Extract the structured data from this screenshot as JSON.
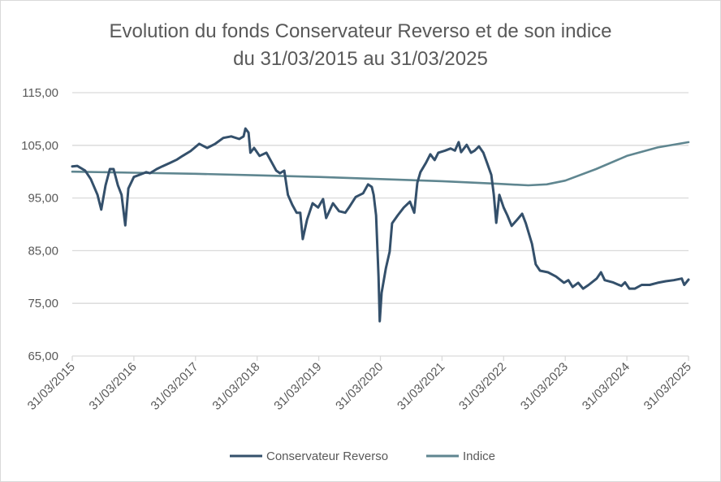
{
  "chart_data": {
    "type": "line",
    "title": [
      "Evolution du fonds Conservateur Reverso et de son indice",
      "du 31/03/2015 au 31/03/2025"
    ],
    "xlabel": "",
    "ylabel": "",
    "x_unit": "years since 31/03/2015",
    "xlim": [
      0,
      10
    ],
    "ylim": [
      65,
      115
    ],
    "y_ticks": [
      "65,00",
      "75,00",
      "85,00",
      "95,00",
      "105,00",
      "115,00"
    ],
    "y_tick_values": [
      65,
      75,
      85,
      95,
      105,
      115
    ],
    "x_ticks": [
      "31/03/2015",
      "31/03/2016",
      "31/03/2017",
      "31/03/2018",
      "31/03/2019",
      "31/03/2020",
      "31/03/2021",
      "31/03/2022",
      "31/03/2023",
      "31/03/2024",
      "31/03/2025"
    ],
    "grid": "horizontal",
    "legend_position": "bottom",
    "series": [
      {
        "name": "Conservateur Reverso",
        "color": "#34506b",
        "x": [
          0,
          0.08,
          0.21,
          0.3,
          0.41,
          0.47,
          0.54,
          0.61,
          0.67,
          0.74,
          0.8,
          0.86,
          0.91,
          1.0,
          1.09,
          1.2,
          1.26,
          1.37,
          1.46,
          1.59,
          1.7,
          1.79,
          1.92,
          2.06,
          2.19,
          2.32,
          2.45,
          2.58,
          2.71,
          2.78,
          2.81,
          2.86,
          2.89,
          2.95,
          3.04,
          3.15,
          3.24,
          3.31,
          3.37,
          3.44,
          3.5,
          3.57,
          3.64,
          3.7,
          3.74,
          3.81,
          3.9,
          3.99,
          4.07,
          4.12,
          4.23,
          4.33,
          4.43,
          4.49,
          4.6,
          4.72,
          4.8,
          4.86,
          4.89,
          4.93,
          4.97,
          4.99,
          5.02,
          5.09,
          5.15,
          5.19,
          5.28,
          5.38,
          5.48,
          5.55,
          5.6,
          5.65,
          5.74,
          5.81,
          5.88,
          5.94,
          6.05,
          6.14,
          6.21,
          6.27,
          6.31,
          6.4,
          6.47,
          6.53,
          6.6,
          6.67,
          6.73,
          6.8,
          6.84,
          6.88,
          6.93,
          7.0,
          7.06,
          7.13,
          7.22,
          7.3,
          7.36,
          7.46,
          7.52,
          7.59,
          7.72,
          7.85,
          7.98,
          8.05,
          8.12,
          8.21,
          8.29,
          8.38,
          8.51,
          8.58,
          8.64,
          8.77,
          8.91,
          8.97,
          9.04,
          9.13,
          9.24,
          9.37,
          9.5,
          9.63,
          9.76,
          9.89,
          9.93,
          10.0
        ],
        "values": [
          101.0,
          101.1,
          100.2,
          98.6,
          95.6,
          92.8,
          97.4,
          100.5,
          100.5,
          97.4,
          95.6,
          89.8,
          96.8,
          99.0,
          99.4,
          99.9,
          99.7,
          100.5,
          101.0,
          101.7,
          102.3,
          103.0,
          103.9,
          105.3,
          104.5,
          105.3,
          106.4,
          106.7,
          106.2,
          106.7,
          108.2,
          107.4,
          103.6,
          104.5,
          103.0,
          103.6,
          101.7,
          100.2,
          99.7,
          100.2,
          95.6,
          93.7,
          92.2,
          92.2,
          87.2,
          90.9,
          94.0,
          93.2,
          94.8,
          91.2,
          94.0,
          92.5,
          92.2,
          93.2,
          95.2,
          95.9,
          97.6,
          97.1,
          95.6,
          91.7,
          80.1,
          71.6,
          77.0,
          81.7,
          84.8,
          90.2,
          91.7,
          93.2,
          94.3,
          92.2,
          97.9,
          99.9,
          101.7,
          103.3,
          102.2,
          103.6,
          104.0,
          104.4,
          104.0,
          105.6,
          103.7,
          105.1,
          103.6,
          104.0,
          104.8,
          103.6,
          101.7,
          99.4,
          95.6,
          90.3,
          95.6,
          93.2,
          91.7,
          89.7,
          90.9,
          92.0,
          90.2,
          86.3,
          82.4,
          81.2,
          80.9,
          80.1,
          78.9,
          79.4,
          78.1,
          78.9,
          77.8,
          78.5,
          79.7,
          80.9,
          79.4,
          79.0,
          78.3,
          79.0,
          77.8,
          77.8,
          78.5,
          78.5,
          78.9,
          79.2,
          79.4,
          79.7,
          78.5,
          79.5
        ]
      },
      {
        "name": "Indice",
        "color": "#5f8690",
        "x": [
          0,
          1,
          2,
          3,
          4,
          5,
          6,
          6.9,
          7.4,
          7.7,
          8,
          8.5,
          9,
          9.5,
          10
        ],
        "values": [
          100.0,
          99.8,
          99.6,
          99.3,
          99.0,
          98.6,
          98.2,
          97.7,
          97.4,
          97.6,
          98.3,
          100.5,
          103.0,
          104.6,
          105.6
        ]
      }
    ]
  }
}
